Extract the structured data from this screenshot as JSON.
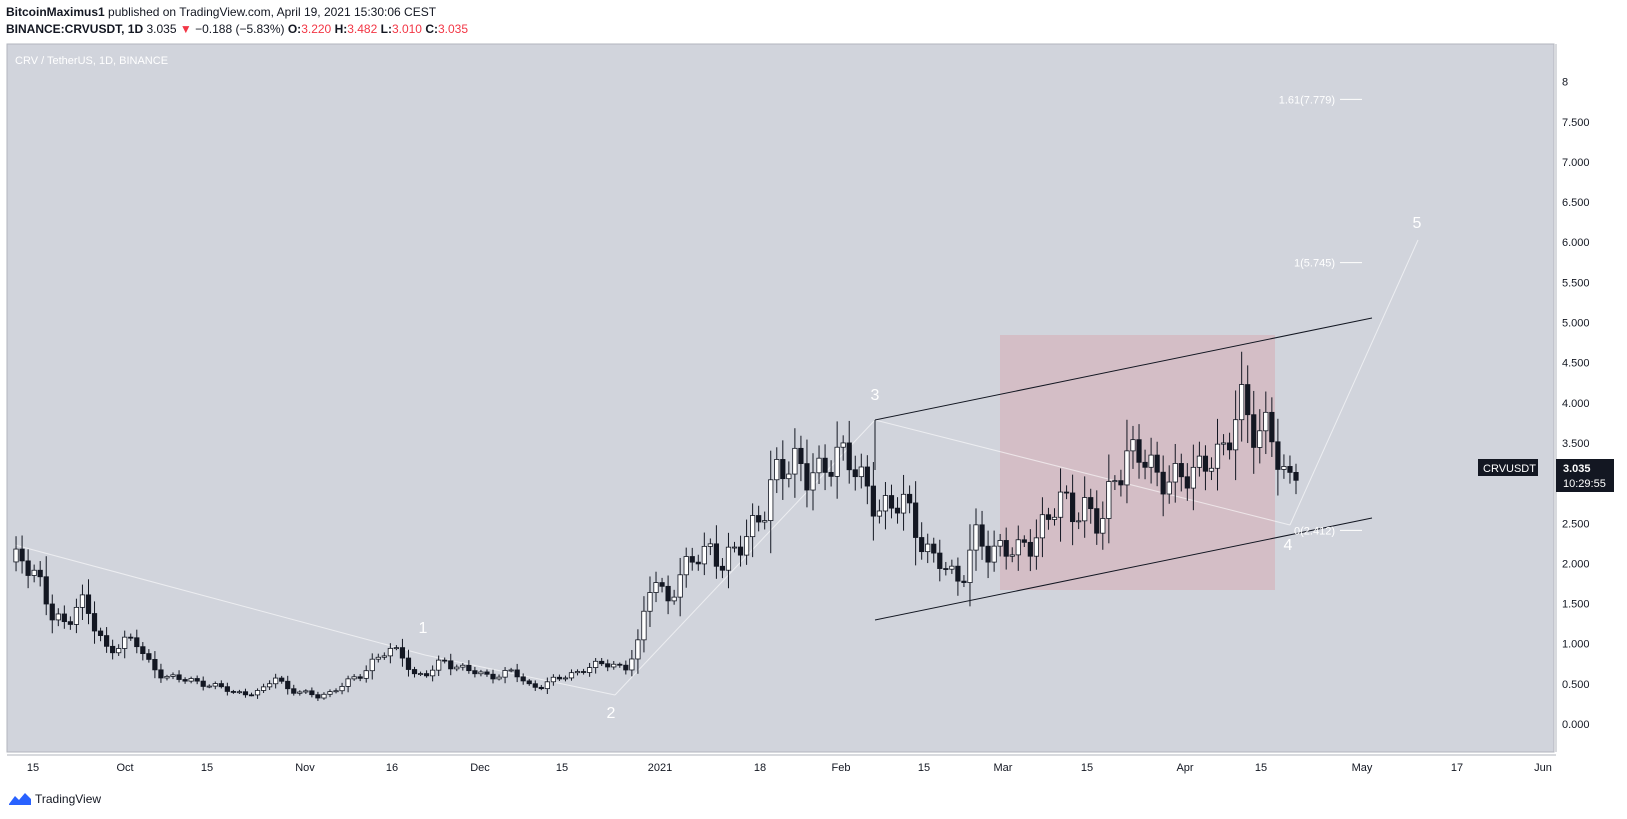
{
  "header": {
    "author": "BitcoinMaximus1",
    "published_text": "published on TradingView.com, April 19, 2021 15:30:06 CEST",
    "symbol": "BINANCE:CRVUSDT, 1D",
    "last": "3.035",
    "change": "−0.188 (−5.83%)",
    "o_label": "O:",
    "o_value": "3.220",
    "h_label": "H:",
    "h_value": "3.482",
    "l_label": "L:",
    "l_value": "3.010",
    "c_label": "C:",
    "c_value": "3.035"
  },
  "footer": {
    "brand": "TradingView"
  },
  "chart_data": {
    "type": "candlestick",
    "title": "CRV / TetherUS, 1D, BINANCE",
    "currency": "USDT",
    "ylim": [
      -0.35,
      8.5
    ],
    "y_ticks": [
      "0.000",
      "0.500",
      "1.000",
      "1.500",
      "2.000",
      "2.500",
      "3.000",
      "3.500",
      "4.000",
      "4.500",
      "5.000",
      "5.500",
      "6.000",
      "6.500",
      "7.000",
      "7.500",
      "8"
    ],
    "x_ticks": [
      "15",
      "Oct",
      "15",
      "Nov",
      "16",
      "Dec",
      "15",
      "2021",
      "18",
      "Feb",
      "15",
      "Mar",
      "15",
      "Apr",
      "15",
      "May",
      "17",
      "Jun"
    ],
    "price_label": {
      "symbol": "CRVUSDT",
      "price": "3.035",
      "countdown": "10:29:55"
    },
    "fib_levels": [
      {
        "label": "1.61(7.779)",
        "value": 7.779
      },
      {
        "label": "1(5.745)",
        "value": 5.745
      },
      {
        "label": "0(2.412)",
        "value": 2.412
      }
    ],
    "wave_labels": [
      "1",
      "2",
      "3",
      "4",
      "5"
    ],
    "ohlc_path": [
      1.95,
      2.1,
      1.85,
      1.3,
      1.25,
      1.6,
      1.2,
      0.9,
      1.05,
      1.0,
      0.75,
      0.6,
      0.55,
      0.55,
      0.5,
      0.45,
      0.4,
      0.38,
      0.4,
      0.6,
      0.42,
      0.38,
      0.35,
      0.4,
      0.5,
      0.6,
      0.8,
      0.9,
      0.88,
      0.6,
      0.62,
      0.8,
      0.72,
      0.65,
      0.6,
      0.62,
      0.65,
      0.48,
      0.48,
      0.55,
      0.6,
      0.7,
      0.72,
      0.75,
      0.7,
      1.0,
      1.9,
      1.55,
      1.8,
      2.1,
      2.25,
      1.9,
      2.2,
      2.5,
      2.6,
      3.2,
      3.4,
      3.0,
      3.1,
      3.5,
      3.2,
      3.0,
      2.8,
      2.6,
      2.8,
      2.4,
      2.0,
      1.95,
      1.8,
      2.3,
      2.1,
      2.3,
      2.1,
      2.2,
      2.6,
      2.75,
      2.6,
      2.8,
      2.4,
      3.0,
      3.5,
      3.3,
      3.0,
      3.2,
      3.0,
      3.1,
      3.5,
      3.3,
      4.0,
      3.8,
      3.6,
      3.1,
      3.035
    ]
  }
}
